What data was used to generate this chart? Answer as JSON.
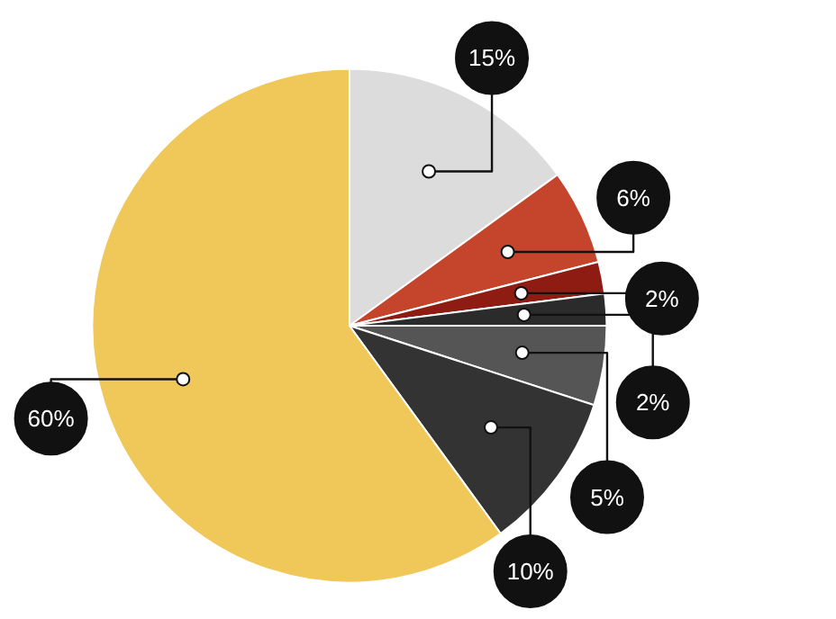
{
  "chart_data": {
    "type": "pie",
    "categories": [
      null,
      null,
      null,
      null,
      null,
      null,
      null
    ],
    "values": [
      15,
      6,
      2,
      2,
      5,
      10,
      60
    ],
    "colors": [
      "#dcdcdc",
      "#c4452b",
      "#8e1c12",
      "#2b2b2b",
      "#555555",
      "#333333",
      "#f0c85a"
    ],
    "value_labels": [
      "15%",
      "6%",
      "2%",
      "2%",
      "5%",
      "10%",
      "60%"
    ]
  }
}
